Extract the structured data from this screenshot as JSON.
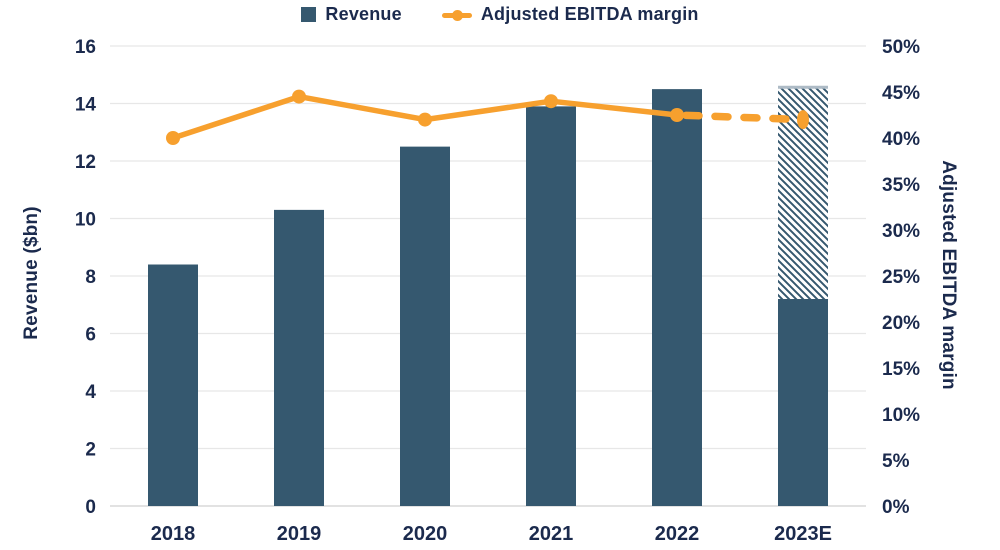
{
  "colors": {
    "bar": "#35586F",
    "line": "#F7A02E",
    "text": "#1B2A4D",
    "grid": "#E7E7E7",
    "axis_line": "#D9D9D9",
    "forecast_cap": "#AEBBC6",
    "background": "#FFFFFF"
  },
  "legend": {
    "items": [
      {
        "label": "Revenue",
        "marker": "square",
        "color": "#35586F"
      },
      {
        "label": "Adjusted EBITDA margin",
        "marker": "line-dot",
        "color": "#F7A02E"
      }
    ]
  },
  "chart_data": {
    "type": "combo bar+line, dual axis",
    "categories": [
      "2018",
      "2019",
      "2020",
      "2021",
      "2022",
      "2023E"
    ],
    "series": [
      {
        "name": "Revenue",
        "type": "bar",
        "axis": "left",
        "unit": "$bn",
        "values": [
          8.4,
          10.3,
          12.5,
          13.9,
          14.5,
          14.6
        ],
        "forecast": {
          "category": "2023E",
          "solid_value": 7.2,
          "total_value": 14.6,
          "style": "diagonal-hatch"
        }
      },
      {
        "name": "Adjusted EBITDA margin",
        "type": "line",
        "axis": "right",
        "unit": "%",
        "values": [
          40,
          44.5,
          42,
          44,
          42.5,
          42
        ],
        "dashed_segment": {
          "from": "2022",
          "to": "2023E"
        }
      }
    ],
    "left_axis": {
      "title": "Revenue ($bn)",
      "min": 0,
      "max": 16,
      "step": 2,
      "tick_labels": [
        "0",
        "2",
        "4",
        "6",
        "8",
        "10",
        "12",
        "14",
        "16"
      ]
    },
    "right_axis": {
      "title": "Adjusted EBITDA margin",
      "min": 0,
      "max": 50,
      "step": 5,
      "tick_labels": [
        "0%",
        "5%",
        "10%",
        "15%",
        "20%",
        "25%",
        "30%",
        "35%",
        "40%",
        "45%",
        "50%"
      ]
    },
    "grid": "horizontal",
    "legend_position": "top-center"
  }
}
